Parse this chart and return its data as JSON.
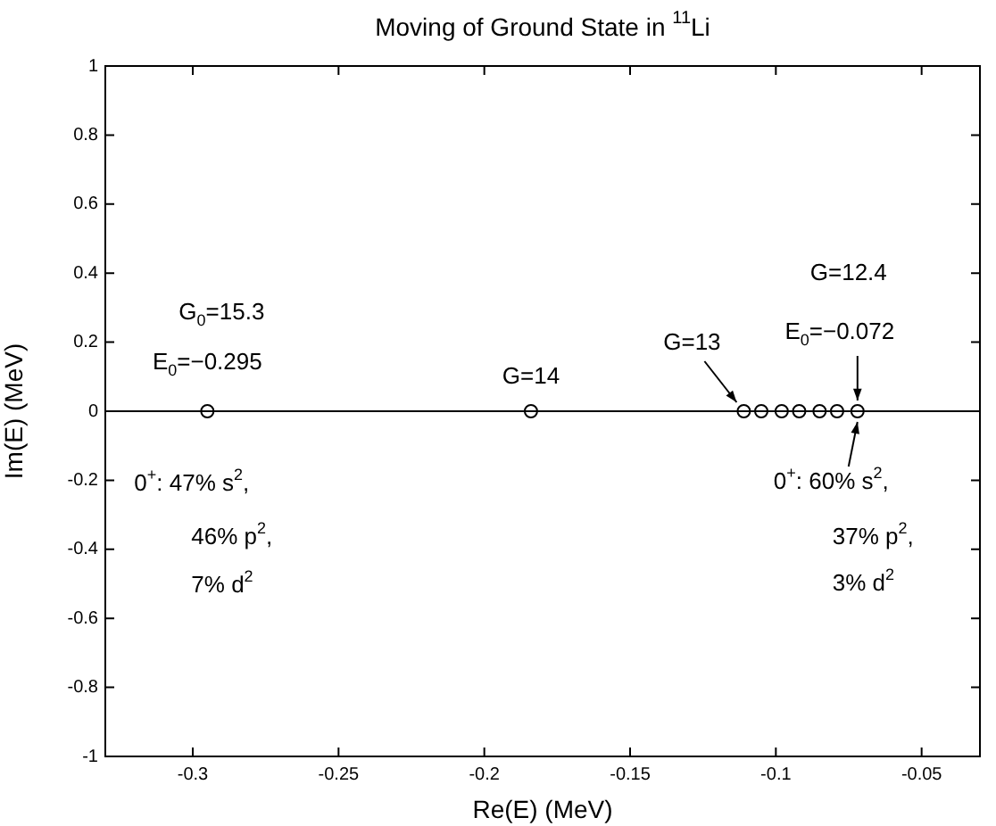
{
  "chart_data": {
    "type": "scatter",
    "title": "Moving of Ground State in $^{11}$Li",
    "xlabel": "Re(E) (MeV)",
    "ylabel": "Im(E) (MeV)",
    "x": [
      -0.295,
      -0.184,
      -0.111,
      -0.105,
      -0.098,
      -0.092,
      -0.085,
      -0.079,
      -0.072
    ],
    "series": [
      {
        "color": "#000000",
        "values": [
          0,
          0,
          0,
          0,
          0,
          0,
          0,
          0,
          0
        ]
      }
    ],
    "marker": "circle",
    "grid": false,
    "legend": false,
    "xlim": [
      -0.33,
      -0.03
    ],
    "xticks": [
      -0.3,
      -0.25,
      -0.2,
      -0.15,
      -0.1,
      -0.05
    ],
    "ylim": [
      -1,
      1
    ],
    "yticks": [
      -1,
      -0.8,
      -0.6,
      -0.4,
      -0.2,
      0,
      0.2,
      0.4,
      0.6,
      0.8,
      1
    ],
    "ref_lines": [
      {
        "axis": "y",
        "value": 0,
        "color": "#000000",
        "line_style": "solid"
      }
    ],
    "annotations": [
      {
        "text": "E$_{0}$=−0.295",
        "x": -0.295,
        "y": 0
      },
      "G$_{0}$=15.3",
      {
        "text": "0$^{+}$: 47% s$^{2}$,",
        "x": -0.295,
        "y": 0
      },
      "46% p$^{2}$,",
      "7% d$^{2}$",
      {
        "text": "G=14",
        "x": -0.184,
        "y": 0
      },
      {
        "text": "G=13",
        "x": -0.111,
        "y": 0
      },
      {
        "text": "E$_{0}$=−0.072",
        "x": -0.072,
        "y": 0
      },
      "G=12.4",
      {
        "text": "0$^{+}$: 60% s$^{2}$,",
        "x": -0.072,
        "y": 0
      },
      "37% p$^{2}$,",
      "3% d$^{2}$"
    ]
  }
}
